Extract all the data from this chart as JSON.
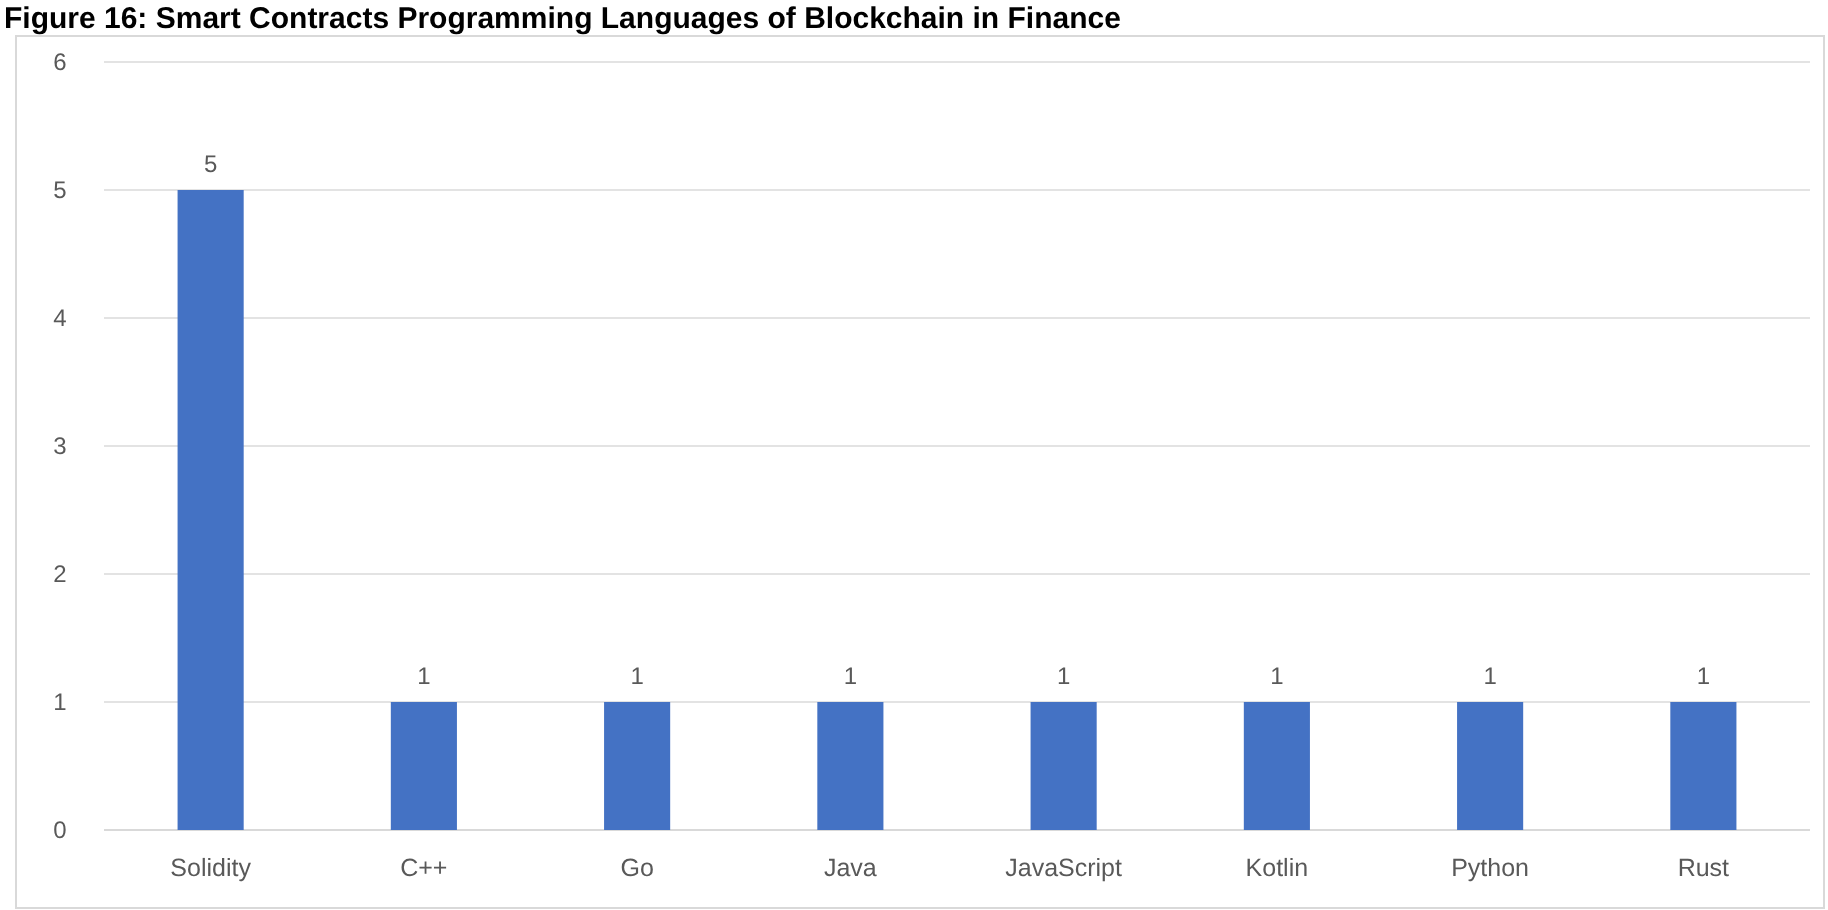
{
  "chart_data": {
    "type": "bar",
    "title": "Figure 16: Smart Contracts Programming Languages of Blockchain in Finance",
    "categories": [
      "Solidity",
      "C++",
      "Go",
      "Java",
      "JavaScript",
      "Kotlin",
      "Python",
      "Rust"
    ],
    "values": [
      5,
      1,
      1,
      1,
      1,
      1,
      1,
      1
    ],
    "color": "#4472c4",
    "ylim": [
      0,
      6
    ],
    "yticks": [
      0,
      1,
      2,
      3,
      4,
      5,
      6
    ],
    "grid": "y",
    "data_labels": true
  }
}
